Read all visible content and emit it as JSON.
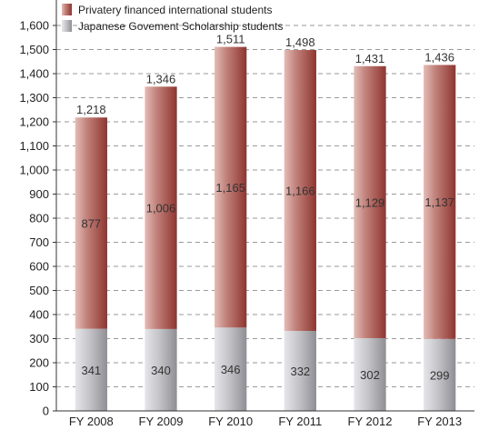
{
  "chart_data": {
    "type": "bar",
    "stacked": true,
    "categories": [
      "FY 2008",
      "FY 2009",
      "FY 2010",
      "FY 2011",
      "FY 2012",
      "FY 2013"
    ],
    "series": [
      {
        "name": "Japanese Govement Scholarship students",
        "values": [
          341,
          340,
          346,
          332,
          302,
          299
        ],
        "labels": [
          "341",
          "340",
          "346",
          "332",
          "302",
          "299"
        ],
        "color": "#b3b3b7"
      },
      {
        "name": "Privatery financed international students",
        "values": [
          877,
          1006,
          1165,
          1166,
          1129,
          1137
        ],
        "labels": [
          "877",
          "1,006",
          "1,165",
          "1,166",
          "1,129",
          "1,137"
        ],
        "color": "#a8524c"
      }
    ],
    "totals": [
      1218,
      1346,
      1511,
      1498,
      1431,
      1436
    ],
    "total_labels": [
      "1,218",
      "1,346",
      "1,511",
      "1,498",
      "1,431",
      "1,436"
    ],
    "ylim": [
      0,
      1600
    ],
    "yticks": [
      0,
      100,
      200,
      300,
      400,
      500,
      600,
      700,
      800,
      900,
      1000,
      1100,
      1200,
      1300,
      1400,
      1500,
      1600
    ],
    "ytick_labels": [
      "0",
      "100",
      "200",
      "300",
      "400",
      "500",
      "600",
      "700",
      "800",
      "900",
      "1,000",
      "1,100",
      "1,200",
      "1,300",
      "1,400",
      "1,500",
      "1,600"
    ],
    "grid": true,
    "legend_position": "top-left"
  }
}
